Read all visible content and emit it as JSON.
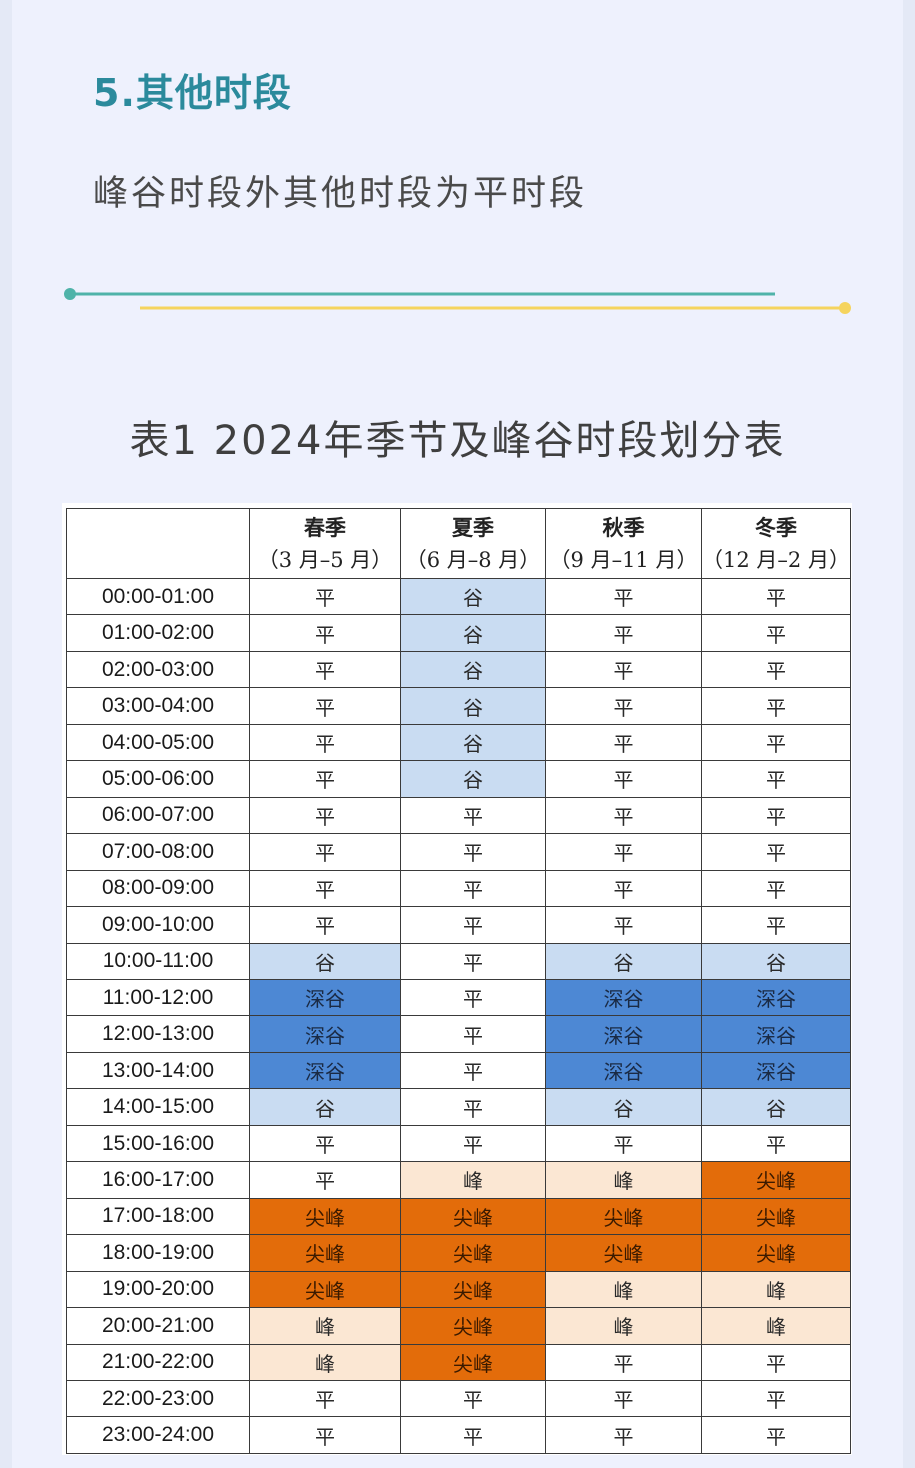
{
  "section": {
    "title": "5.其他时段",
    "text": "峰谷时段外其他时段为平时段"
  },
  "colors": {
    "title_teal": "#2b8a9c",
    "divider_teal": "#4fb3a9",
    "divider_yellow": "#f5d45e",
    "flat": "#ffffff",
    "valley": "#c9dcf2",
    "deep_valley": "#4d88d4",
    "peak": "#fbe7d3",
    "sharp_peak": "#e36c0a"
  },
  "table": {
    "title": "表1  2024年季节及峰谷时段划分表",
    "headers": [
      {
        "season": "春季",
        "months": "（3 月–5 月）"
      },
      {
        "season": "夏季",
        "months": "（6 月–8 月）"
      },
      {
        "season": "秋季",
        "months": "（9 月–11 月）"
      },
      {
        "season": "冬季",
        "months": "（12 月–2 月）"
      }
    ],
    "rows": [
      {
        "time": "00:00-01:00",
        "values": [
          "平",
          "谷",
          "平",
          "平"
        ]
      },
      {
        "time": "01:00-02:00",
        "values": [
          "平",
          "谷",
          "平",
          "平"
        ]
      },
      {
        "time": "02:00-03:00",
        "values": [
          "平",
          "谷",
          "平",
          "平"
        ]
      },
      {
        "time": "03:00-04:00",
        "values": [
          "平",
          "谷",
          "平",
          "平"
        ]
      },
      {
        "time": "04:00-05:00",
        "values": [
          "平",
          "谷",
          "平",
          "平"
        ]
      },
      {
        "time": "05:00-06:00",
        "values": [
          "平",
          "谷",
          "平",
          "平"
        ]
      },
      {
        "time": "06:00-07:00",
        "values": [
          "平",
          "平",
          "平",
          "平"
        ]
      },
      {
        "time": "07:00-08:00",
        "values": [
          "平",
          "平",
          "平",
          "平"
        ]
      },
      {
        "time": "08:00-09:00",
        "values": [
          "平",
          "平",
          "平",
          "平"
        ]
      },
      {
        "time": "09:00-10:00",
        "values": [
          "平",
          "平",
          "平",
          "平"
        ]
      },
      {
        "time": "10:00-11:00",
        "values": [
          "谷",
          "平",
          "谷",
          "谷"
        ]
      },
      {
        "time": "11:00-12:00",
        "values": [
          "深谷",
          "平",
          "深谷",
          "深谷"
        ]
      },
      {
        "time": "12:00-13:00",
        "values": [
          "深谷",
          "平",
          "深谷",
          "深谷"
        ]
      },
      {
        "time": "13:00-14:00",
        "values": [
          "深谷",
          "平",
          "深谷",
          "深谷"
        ]
      },
      {
        "time": "14:00-15:00",
        "values": [
          "谷",
          "平",
          "谷",
          "谷"
        ]
      },
      {
        "time": "15:00-16:00",
        "values": [
          "平",
          "平",
          "平",
          "平"
        ]
      },
      {
        "time": "16:00-17:00",
        "values": [
          "平",
          "峰",
          "峰",
          "尖峰"
        ]
      },
      {
        "time": "17:00-18:00",
        "values": [
          "尖峰",
          "尖峰",
          "尖峰",
          "尖峰"
        ]
      },
      {
        "time": "18:00-19:00",
        "values": [
          "尖峰",
          "尖峰",
          "尖峰",
          "尖峰"
        ]
      },
      {
        "time": "19:00-20:00",
        "values": [
          "尖峰",
          "尖峰",
          "峰",
          "峰"
        ]
      },
      {
        "time": "20:00-21:00",
        "values": [
          "峰",
          "尖峰",
          "峰",
          "峰"
        ]
      },
      {
        "time": "21:00-22:00",
        "values": [
          "峰",
          "尖峰",
          "平",
          "平"
        ]
      },
      {
        "time": "22:00-23:00",
        "values": [
          "平",
          "平",
          "平",
          "平"
        ]
      },
      {
        "time": "23:00-24:00",
        "values": [
          "平",
          "平",
          "平",
          "平"
        ]
      }
    ]
  }
}
